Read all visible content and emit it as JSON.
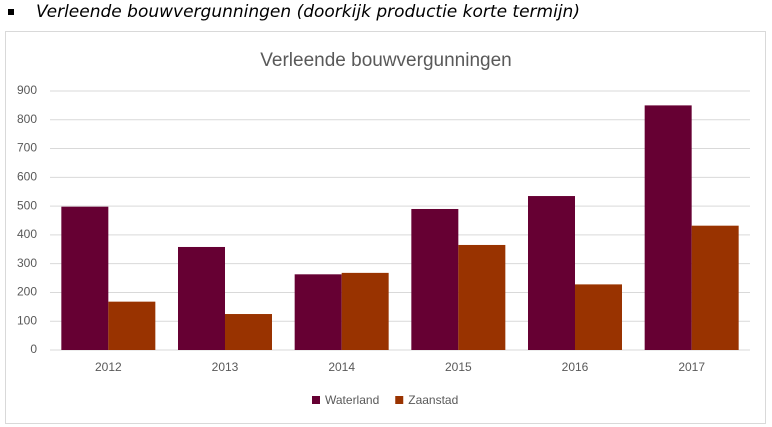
{
  "heading": "Verleende bouwvergunningen (doorkijk productie korte termijn)",
  "chart_data": {
    "type": "bar",
    "title": "Verleende bouwvergunningen",
    "categories": [
      "2012",
      "2013",
      "2014",
      "2015",
      "2016",
      "2017"
    ],
    "series": [
      {
        "name": "Waterland",
        "color": "#660033",
        "values": [
          498,
          358,
          263,
          490,
          535,
          850
        ]
      },
      {
        "name": "Zaanstad",
        "color": "#993300",
        "values": [
          168,
          125,
          268,
          365,
          228,
          432
        ]
      }
    ],
    "ylim": [
      0,
      900
    ],
    "yticks": [
      0,
      100,
      200,
      300,
      400,
      500,
      600,
      700,
      800,
      900
    ],
    "grid": true,
    "legend": "bottom"
  }
}
